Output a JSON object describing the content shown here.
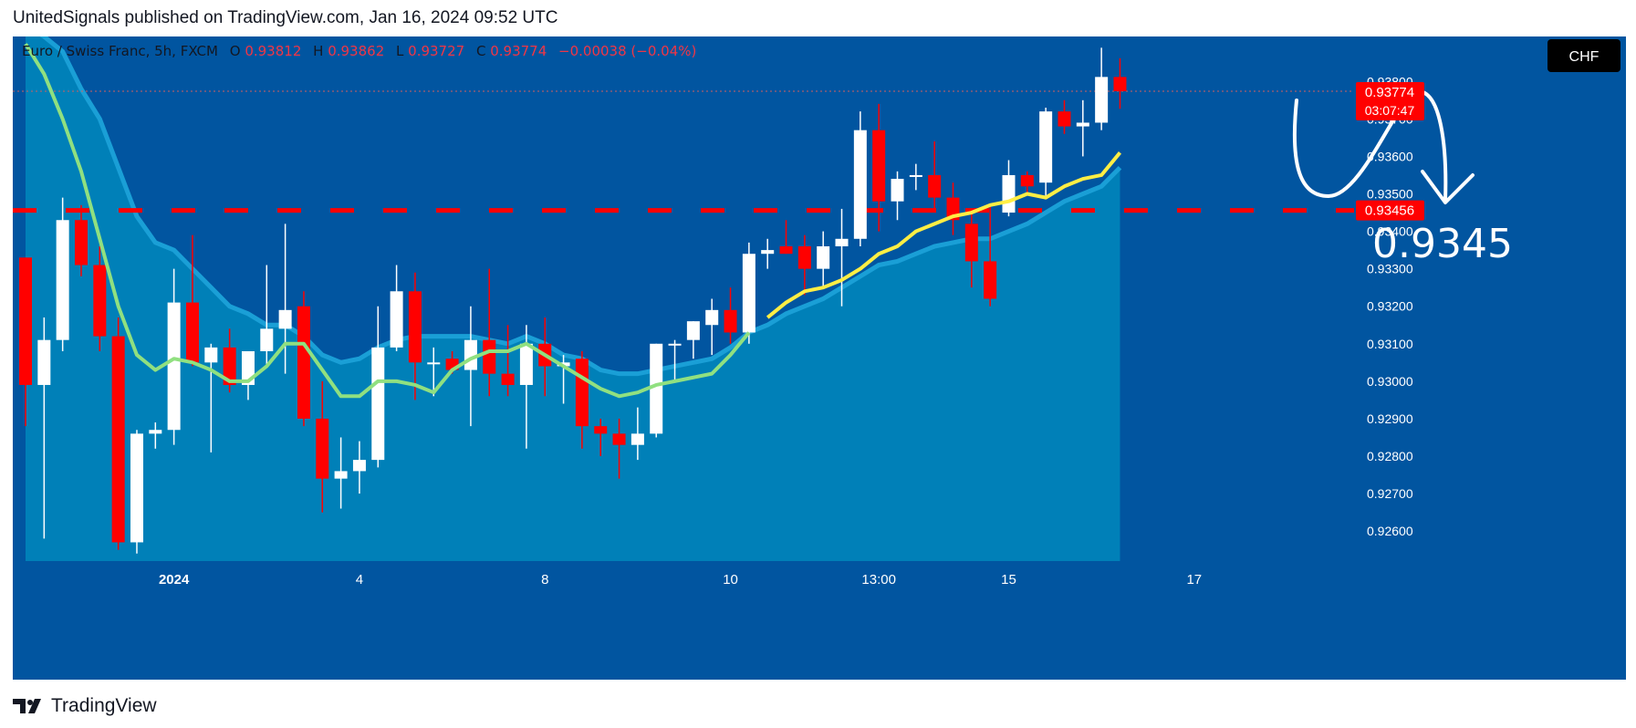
{
  "header": {
    "attribution": "UnitedSignals published on TradingView.com, Jan 16, 2024 09:52 UTC"
  },
  "footer": {
    "brand": "TradingView"
  },
  "legend": {
    "symbol": "Euro / Swiss Franc, 5h, FXCM",
    "o_label": "O",
    "o_value": "0.93812",
    "h_label": "H",
    "h_value": "0.93862",
    "l_label": "L",
    "l_value": "0.93727",
    "c_label": "C",
    "c_value": "0.93774",
    "change": "−0.00038 (−0.04%)"
  },
  "currency_badge": "CHF",
  "price_badge": {
    "price": "0.93774",
    "countdown": "03:07:47",
    "color": "#ff0000"
  },
  "level_badge": {
    "price": "0.93456",
    "color": "#ff0000"
  },
  "annotation": {
    "text": "0.9345"
  },
  "colors": {
    "background": "#0155a0",
    "area_fill": "#0080b8",
    "area_line": "#1a9fd6",
    "bull": "#ffffff",
    "bear": "#ff0000",
    "ma_green": "#90e080",
    "ma_yellow": "#ffee44",
    "level_line": "#ff0000",
    "last_price_line": "#d06060"
  },
  "chart_data": {
    "type": "candlestick",
    "symbol": "Euro / Swiss Franc, 5h, FXCM",
    "yaxis": {
      "min": 0.9252,
      "max": 0.9392,
      "ticks": [
        "0.92600",
        "0.92700",
        "0.92800",
        "0.92900",
        "0.93000",
        "0.93100",
        "0.93200",
        "0.93300",
        "0.93400",
        "0.93500",
        "0.93600",
        "0.93700",
        "0.93800"
      ]
    },
    "xaxis": {
      "ticks": [
        {
          "label": "2024",
          "index": 8
        },
        {
          "label": "4",
          "index": 18
        },
        {
          "label": "8",
          "index": 28
        },
        {
          "label": "10",
          "index": 38
        },
        {
          "label": "13:00",
          "index": 46
        },
        {
          "label": "15",
          "index": 53
        },
        {
          "label": "17",
          "index": 63
        }
      ]
    },
    "horizontal_level": 0.93456,
    "last_price": 0.93774,
    "candles": [
      {
        "o": 0.9333,
        "h": 0.9333,
        "l": 0.9288,
        "c": 0.9299
      },
      {
        "o": 0.9299,
        "h": 0.9317,
        "l": 0.9258,
        "c": 0.9311
      },
      {
        "o": 0.9311,
        "h": 0.9349,
        "l": 0.9308,
        "c": 0.9343
      },
      {
        "o": 0.9343,
        "h": 0.9347,
        "l": 0.9328,
        "c": 0.9331
      },
      {
        "o": 0.9331,
        "h": 0.9336,
        "l": 0.9308,
        "c": 0.9312
      },
      {
        "o": 0.9312,
        "h": 0.9317,
        "l": 0.9255,
        "c": 0.9257
      },
      {
        "o": 0.9257,
        "h": 0.9287,
        "l": 0.9254,
        "c": 0.9286
      },
      {
        "o": 0.9286,
        "h": 0.9289,
        "l": 0.9282,
        "c": 0.9287
      },
      {
        "o": 0.9287,
        "h": 0.933,
        "l": 0.9283,
        "c": 0.9321
      },
      {
        "o": 0.9321,
        "h": 0.9339,
        "l": 0.9304,
        "c": 0.9305
      },
      {
        "o": 0.9305,
        "h": 0.931,
        "l": 0.9281,
        "c": 0.9309
      },
      {
        "o": 0.9309,
        "h": 0.9314,
        "l": 0.9297,
        "c": 0.9299
      },
      {
        "o": 0.9299,
        "h": 0.9308,
        "l": 0.9295,
        "c": 0.9308
      },
      {
        "o": 0.9308,
        "h": 0.9331,
        "l": 0.9304,
        "c": 0.9314
      },
      {
        "o": 0.9314,
        "h": 0.9342,
        "l": 0.9302,
        "c": 0.9319
      },
      {
        "o": 0.932,
        "h": 0.9324,
        "l": 0.9288,
        "c": 0.929
      },
      {
        "o": 0.929,
        "h": 0.93,
        "l": 0.9265,
        "c": 0.9274
      },
      {
        "o": 0.9274,
        "h": 0.9285,
        "l": 0.9266,
        "c": 0.9276
      },
      {
        "o": 0.9276,
        "h": 0.9284,
        "l": 0.927,
        "c": 0.9279
      },
      {
        "o": 0.9279,
        "h": 0.932,
        "l": 0.9277,
        "c": 0.9309
      },
      {
        "o": 0.9309,
        "h": 0.9331,
        "l": 0.9308,
        "c": 0.9324
      },
      {
        "o": 0.9324,
        "h": 0.9329,
        "l": 0.9295,
        "c": 0.9305
      },
      {
        "o": 0.9305,
        "h": 0.9309,
        "l": 0.9296,
        "c": 0.9305
      },
      {
        "o": 0.9306,
        "h": 0.9308,
        "l": 0.9302,
        "c": 0.9303
      },
      {
        "o": 0.9303,
        "h": 0.932,
        "l": 0.9288,
        "c": 0.9311
      },
      {
        "o": 0.9311,
        "h": 0.933,
        "l": 0.9296,
        "c": 0.9302
      },
      {
        "o": 0.9302,
        "h": 0.9315,
        "l": 0.9296,
        "c": 0.9299
      },
      {
        "o": 0.9299,
        "h": 0.9315,
        "l": 0.9282,
        "c": 0.931
      },
      {
        "o": 0.931,
        "h": 0.9317,
        "l": 0.9296,
        "c": 0.9304
      },
      {
        "o": 0.9304,
        "h": 0.9307,
        "l": 0.9294,
        "c": 0.9305
      },
      {
        "o": 0.9306,
        "h": 0.9308,
        "l": 0.9282,
        "c": 0.9288
      },
      {
        "o": 0.9288,
        "h": 0.929,
        "l": 0.928,
        "c": 0.9286
      },
      {
        "o": 0.9286,
        "h": 0.929,
        "l": 0.9274,
        "c": 0.9283
      },
      {
        "o": 0.9283,
        "h": 0.9293,
        "l": 0.9279,
        "c": 0.9286
      },
      {
        "o": 0.9286,
        "h": 0.931,
        "l": 0.9285,
        "c": 0.931
      },
      {
        "o": 0.931,
        "h": 0.9311,
        "l": 0.93,
        "c": 0.931
      },
      {
        "o": 0.9311,
        "h": 0.9316,
        "l": 0.9306,
        "c": 0.9316
      },
      {
        "o": 0.9315,
        "h": 0.9322,
        "l": 0.9307,
        "c": 0.9319
      },
      {
        "o": 0.9319,
        "h": 0.9325,
        "l": 0.931,
        "c": 0.9313
      },
      {
        "o": 0.9313,
        "h": 0.9337,
        "l": 0.931,
        "c": 0.9334
      },
      {
        "o": 0.9334,
        "h": 0.9338,
        "l": 0.933,
        "c": 0.9335
      },
      {
        "o": 0.9336,
        "h": 0.9343,
        "l": 0.9334,
        "c": 0.9334
      },
      {
        "o": 0.9336,
        "h": 0.9339,
        "l": 0.9323,
        "c": 0.933
      },
      {
        "o": 0.933,
        "h": 0.934,
        "l": 0.9325,
        "c": 0.9336
      },
      {
        "o": 0.9336,
        "h": 0.9346,
        "l": 0.932,
        "c": 0.9338
      },
      {
        "o": 0.9338,
        "h": 0.9372,
        "l": 0.9336,
        "c": 0.9367
      },
      {
        "o": 0.9367,
        "h": 0.9374,
        "l": 0.934,
        "c": 0.9348
      },
      {
        "o": 0.9348,
        "h": 0.9356,
        "l": 0.9343,
        "c": 0.9354
      },
      {
        "o": 0.9355,
        "h": 0.9358,
        "l": 0.9351,
        "c": 0.9355
      },
      {
        "o": 0.9355,
        "h": 0.9364,
        "l": 0.9346,
        "c": 0.9349
      },
      {
        "o": 0.9349,
        "h": 0.9353,
        "l": 0.9339,
        "c": 0.9343
      },
      {
        "o": 0.9342,
        "h": 0.9345,
        "l": 0.9325,
        "c": 0.9332
      },
      {
        "o": 0.9332,
        "h": 0.9347,
        "l": 0.932,
        "c": 0.9322
      },
      {
        "o": 0.9345,
        "h": 0.9359,
        "l": 0.9344,
        "c": 0.9355
      },
      {
        "o": 0.9355,
        "h": 0.9356,
        "l": 0.935,
        "c": 0.9352
      },
      {
        "o": 0.9353,
        "h": 0.9373,
        "l": 0.9349,
        "c": 0.9372
      },
      {
        "o": 0.9372,
        "h": 0.9375,
        "l": 0.9366,
        "c": 0.9368
      },
      {
        "o": 0.9368,
        "h": 0.9375,
        "l": 0.936,
        "c": 0.9369
      },
      {
        "o": 0.9369,
        "h": 0.9389,
        "l": 0.9367,
        "c": 0.93812
      },
      {
        "o": 0.93812,
        "h": 0.93862,
        "l": 0.93727,
        "c": 0.93774
      }
    ],
    "series": [
      {
        "type": "line",
        "color": "#90e080",
        "values": [
          0.939,
          0.9382,
          0.937,
          0.9356,
          0.9338,
          0.932,
          0.9307,
          0.9303,
          0.9306,
          0.9305,
          0.9303,
          0.93,
          0.93,
          0.9304,
          0.931,
          0.931,
          0.9303,
          0.9296,
          0.9296,
          0.93,
          0.93,
          0.9299,
          0.9297,
          0.9303,
          0.9306,
          0.9308,
          0.9308,
          0.931,
          0.9307,
          0.9304,
          0.9301,
          0.9298,
          0.9296,
          0.9297,
          0.9299,
          0.93,
          0.9301,
          0.9302,
          0.9307,
          0.9313
        ]
      },
      {
        "type": "line",
        "color": "#ffee44",
        "start_index": 40,
        "values": [
          0.9317,
          0.9321,
          0.9324,
          0.9325,
          0.9327,
          0.933,
          0.9334,
          0.9336,
          0.934,
          0.9342,
          0.9344,
          0.9345,
          0.9347,
          0.9348,
          0.935,
          0.9349,
          0.9352,
          0.9354,
          0.9355,
          0.9361
        ]
      },
      {
        "type": "area",
        "color": "#0080b8",
        "values": [
          0.9395,
          0.9392,
          0.9388,
          0.9378,
          0.937,
          0.9357,
          0.9344,
          0.9337,
          0.9335,
          0.933,
          0.9325,
          0.932,
          0.9318,
          0.9315,
          0.9315,
          0.9312,
          0.9307,
          0.9305,
          0.9306,
          0.9309,
          0.9311,
          0.9312,
          0.9312,
          0.9312,
          0.9312,
          0.9311,
          0.931,
          0.9312,
          0.931,
          0.9307,
          0.9306,
          0.9303,
          0.9302,
          0.9302,
          0.9303,
          0.9304,
          0.9305,
          0.9306,
          0.9309,
          0.9313,
          0.9315,
          0.9318,
          0.932,
          0.9322,
          0.9325,
          0.9328,
          0.9331,
          0.9332,
          0.9334,
          0.9336,
          0.9337,
          0.9338,
          0.9338,
          0.934,
          0.9342,
          0.9345,
          0.9348,
          0.935,
          0.9352,
          0.9357
        ]
      }
    ]
  }
}
